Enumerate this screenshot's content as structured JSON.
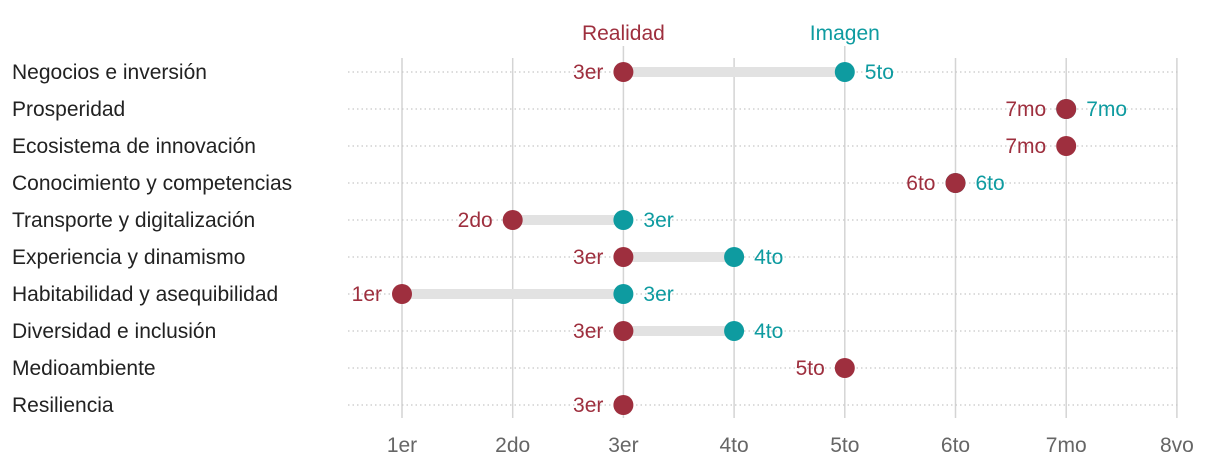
{
  "chart_data": {
    "type": "dumbbell",
    "title": "",
    "xlabel": "",
    "ylabel": "",
    "x_ticks": [
      "1er",
      "2do",
      "3er",
      "4to",
      "5to",
      "6to",
      "7mo",
      "8vo"
    ],
    "xlim": [
      0.5,
      8
    ],
    "legend": [
      {
        "name": "Realidad",
        "color": "#9e2f3e",
        "position": "top"
      },
      {
        "name": "Imagen",
        "color": "#0e9ba0",
        "position": "top"
      }
    ],
    "categories": [
      "Negocios e inversión",
      "Prosperidad",
      "Ecosistema de innovación",
      "Conocimiento y competencias",
      "Transporte y digitalización",
      "Experiencia y dinamismo",
      "Habitabilidad y asequibilidad",
      "Diversidad e inclusión",
      "Medioambiente",
      "Resiliencia"
    ],
    "series": [
      {
        "name": "Realidad",
        "color": "#9e2f3e",
        "values": [
          3,
          7,
          7,
          6,
          2,
          3,
          1,
          3,
          5,
          3
        ],
        "labels": [
          "3er",
          "7mo",
          "7mo",
          "6to",
          "2do",
          "3er",
          "1er",
          "3er",
          "5to",
          "3er"
        ]
      },
      {
        "name": "Imagen",
        "color": "#0e9ba0",
        "values": [
          5,
          7,
          null,
          6,
          3,
          4,
          3,
          4,
          null,
          null
        ],
        "labels": [
          "5to",
          "7mo",
          null,
          "6to",
          "3er",
          "4to",
          "3er",
          "4to",
          null,
          null
        ]
      }
    ],
    "connector_color": "#e2e2e2",
    "grid_color": "#d4d4d4",
    "row_guide_color": "#c8c8c8"
  }
}
